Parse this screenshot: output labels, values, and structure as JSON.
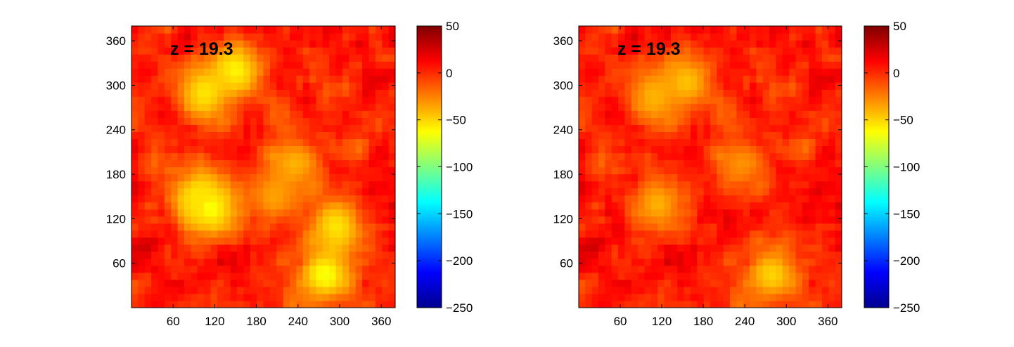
{
  "chart_data": [
    {
      "type": "heatmap",
      "title": "",
      "xlabel": "",
      "ylabel": "",
      "annotation": "z = 19.3",
      "xlim": [
        0,
        380
      ],
      "ylim": [
        0,
        380
      ],
      "xticks": [
        "60",
        "120",
        "180",
        "240",
        "300",
        "360"
      ],
      "yticks": [
        "60",
        "120",
        "180",
        "240",
        "300",
        "360"
      ],
      "colorbar": {
        "range": [
          -250,
          50
        ],
        "ticks": [
          "50",
          "0",
          "−50",
          "−100",
          "−150",
          "−200",
          "−250"
        ],
        "colormap": "jet"
      },
      "field_range": [
        -75,
        45
      ],
      "notable_low_regions": [
        {
          "x": 150,
          "y": 320,
          "value": -60
        },
        {
          "x": 105,
          "y": 290,
          "value": -55
        },
        {
          "x": 115,
          "y": 135,
          "value": -65
        },
        {
          "x": 95,
          "y": 150,
          "value": -55
        },
        {
          "x": 280,
          "y": 45,
          "value": -65
        },
        {
          "x": 295,
          "y": 110,
          "value": -55
        },
        {
          "x": 235,
          "y": 195,
          "value": -40
        },
        {
          "x": 205,
          "y": 150,
          "value": -35
        }
      ]
    },
    {
      "type": "heatmap",
      "title": "",
      "xlabel": "",
      "ylabel": "",
      "annotation": "z = 19.3",
      "xlim": [
        0,
        380
      ],
      "ylim": [
        0,
        380
      ],
      "xticks": [
        "60",
        "120",
        "180",
        "240",
        "300",
        "360"
      ],
      "yticks": [
        "60",
        "120",
        "180",
        "240",
        "300",
        "360"
      ],
      "colorbar": {
        "range": [
          -250,
          50
        ],
        "ticks": [
          "50",
          "0",
          "−50",
          "−100",
          "−150",
          "−200",
          "−250"
        ],
        "colormap": "jet"
      },
      "field_range": [
        -60,
        45
      ],
      "notable_low_regions": [
        {
          "x": 155,
          "y": 305,
          "value": -45
        },
        {
          "x": 110,
          "y": 285,
          "value": -40
        },
        {
          "x": 115,
          "y": 140,
          "value": -40
        },
        {
          "x": 280,
          "y": 45,
          "value": -50
        },
        {
          "x": 235,
          "y": 195,
          "value": -30
        }
      ]
    }
  ]
}
